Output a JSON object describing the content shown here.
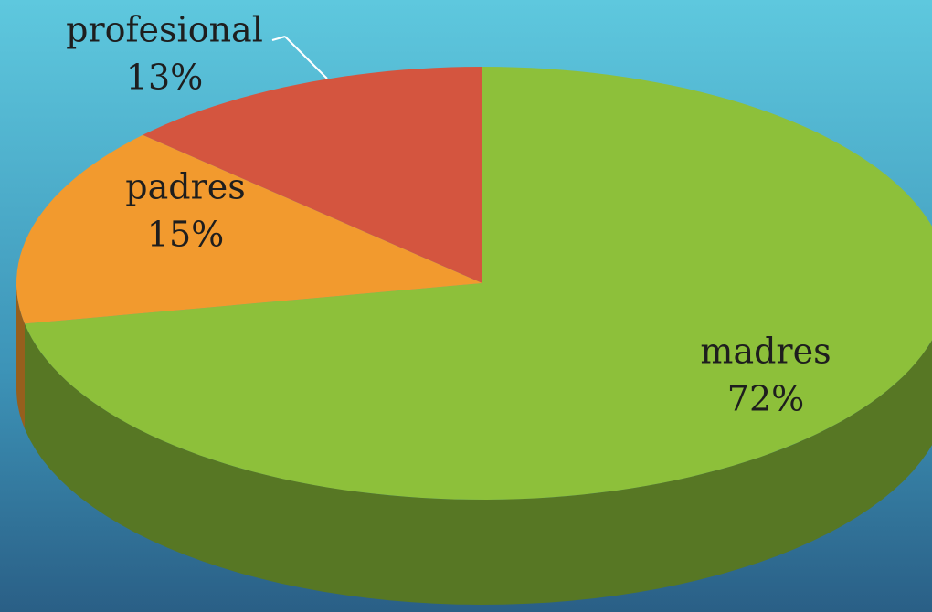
{
  "chart_data": {
    "type": "pie",
    "categories": [
      "madres",
      "padres",
      "profesional"
    ],
    "values": [
      72,
      15,
      13
    ],
    "value_labels": [
      "72%",
      "15%",
      "13%"
    ],
    "colors": [
      "#8dc03a",
      "#f29a2e",
      "#d4553f"
    ]
  }
}
